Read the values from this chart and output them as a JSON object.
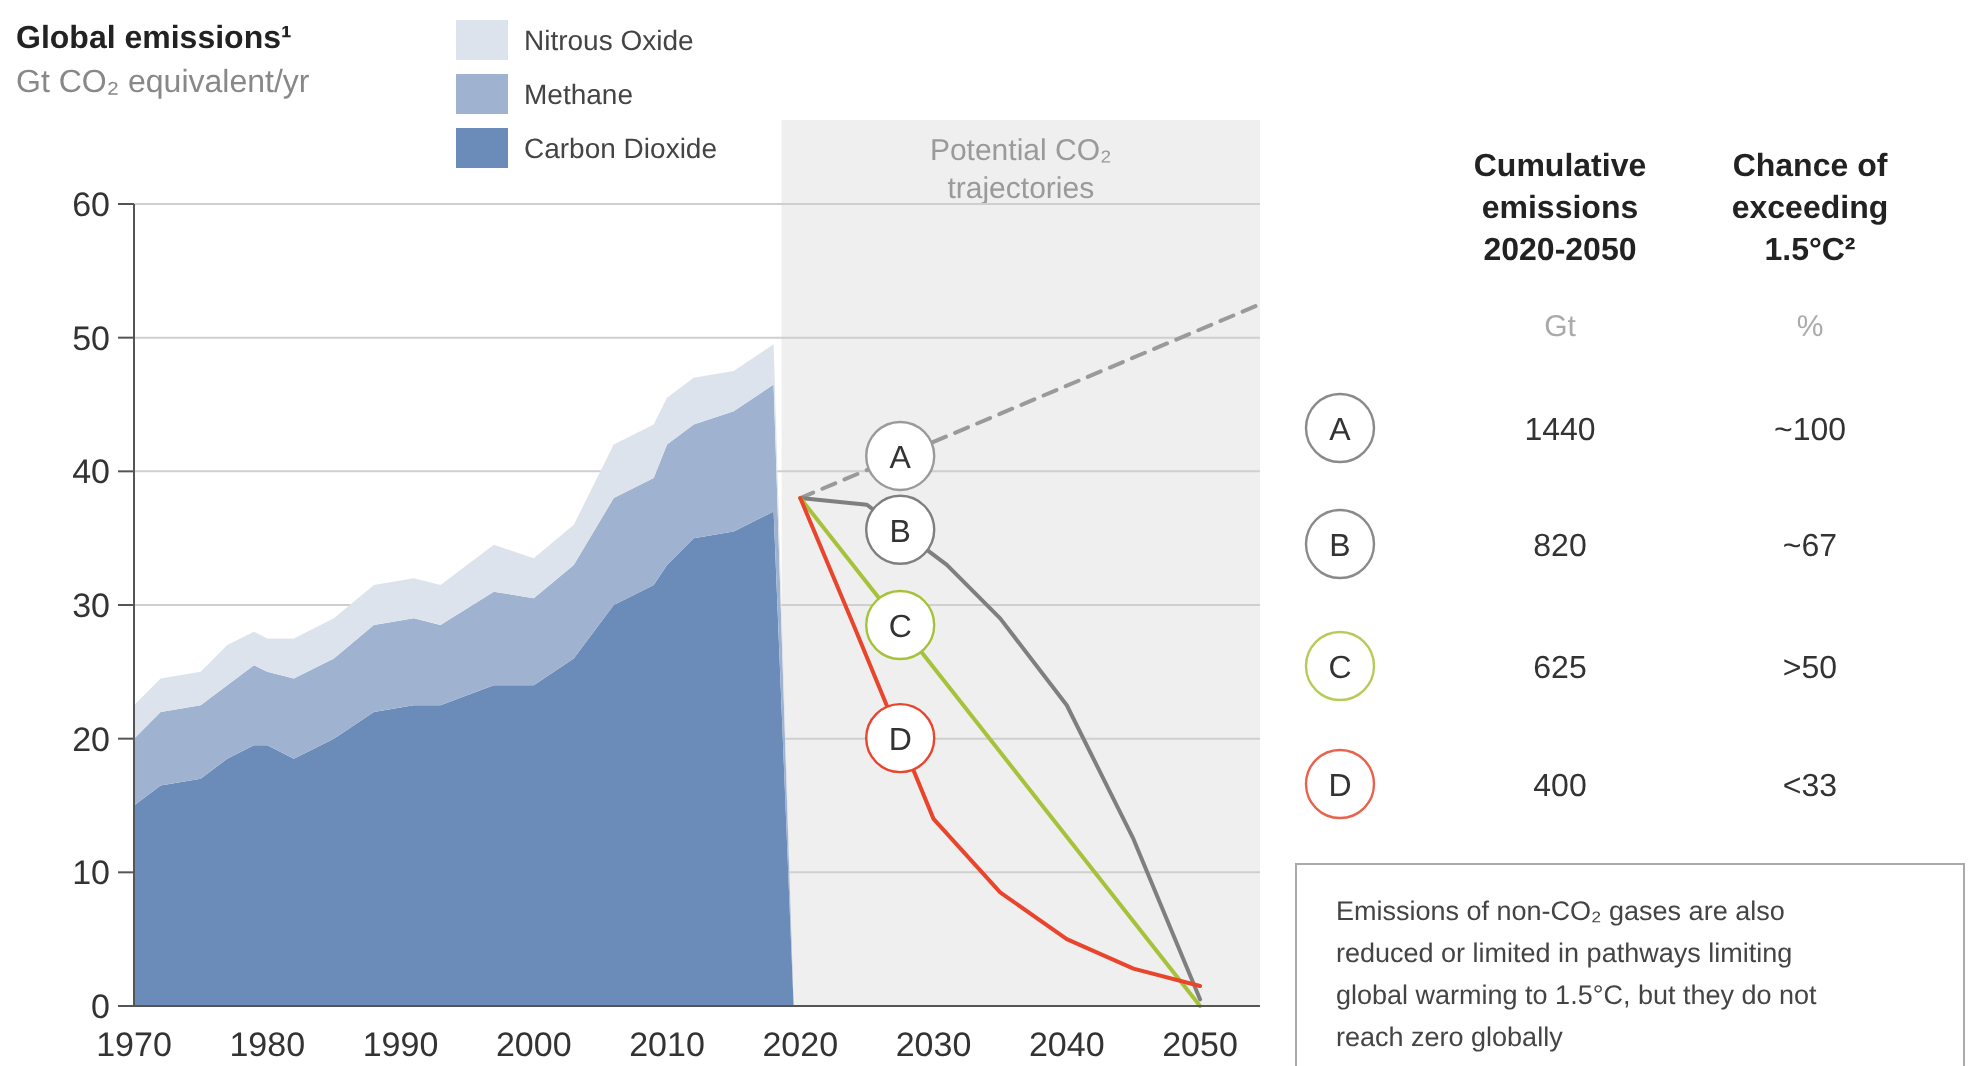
{
  "chart_data": [
    {
      "type": "area",
      "title": "Global emissions¹",
      "ylabel": "Gt CO₂ equivalent/yr",
      "stacked": true,
      "grid": "y",
      "legend": "top",
      "x": [
        1970,
        1972,
        1975,
        1977,
        1979,
        1980,
        1982,
        1985,
        1988,
        1991,
        1993,
        1997,
        2000,
        2003,
        2006,
        2009,
        2010,
        2012,
        2015,
        2018,
        2019.5
      ],
      "xlim": [
        1970,
        2054.5
      ],
      "ylim": [
        0,
        60
      ],
      "xticks": [
        1970,
        1980,
        1990,
        2000,
        2010,
        2020,
        2030,
        2040,
        2050
      ],
      "yticks": [
        0,
        10,
        20,
        30,
        40,
        50,
        60
      ],
      "series": [
        {
          "name": "Carbon Dioxide",
          "color": "#6b8cb8",
          "values": [
            15,
            16.5,
            17,
            18.5,
            19.5,
            19.5,
            18.5,
            20,
            22,
            22.5,
            22.5,
            24,
            24,
            26,
            30,
            31.5,
            33,
            35,
            35.5,
            37,
            0
          ]
        },
        {
          "name": "Methane",
          "color": "#9fb3d1",
          "values": [
            5,
            5.5,
            5.5,
            5.5,
            6,
            5.5,
            6,
            6,
            6.5,
            6.5,
            6,
            7,
            6.5,
            7,
            8,
            8,
            9,
            8.5,
            9,
            9.5,
            0
          ]
        },
        {
          "name": "Nitrous Oxide",
          "color": "#dde3ec",
          "values": [
            2.5,
            2.5,
            2.5,
            3,
            2.5,
            2.5,
            3,
            3,
            3,
            3,
            3,
            3.5,
            3,
            3,
            4,
            4,
            3.5,
            3.5,
            3,
            3,
            0
          ]
        },
        {
          "name": "A",
          "type": "line",
          "line_style": "dashed",
          "color": "#9a9a9a",
          "x": [
            2020,
            2054.5
          ],
          "values": [
            38,
            52.5
          ]
        },
        {
          "name": "B",
          "type": "line",
          "color": "#7f7f7f",
          "x": [
            2020,
            2025,
            2031,
            2035,
            2040,
            2045,
            2050
          ],
          "values": [
            38,
            37.5,
            33,
            29,
            22.5,
            12.5,
            0.5
          ]
        },
        {
          "name": "C",
          "type": "line",
          "color": "#a6c23a",
          "x": [
            2020,
            2050
          ],
          "values": [
            38,
            0
          ]
        },
        {
          "name": "D",
          "type": "line",
          "color": "#e8452c",
          "x": [
            2020,
            2024,
            2030,
            2035,
            2040,
            2045,
            2050
          ],
          "values": [
            38,
            28.5,
            14,
            8.5,
            5,
            2.8,
            1.5
          ]
        }
      ],
      "bands": [
        {
          "axis": "x",
          "from": 2018.6,
          "to": 2054.5,
          "label": "Potential CO₂ trajectories",
          "color": "#efefef"
        }
      ]
    },
    {
      "type": "other",
      "data_labels": true,
      "categories": [
        "A",
        "B",
        "C",
        "D"
      ],
      "colors": [
        "#8a8a8a",
        "#8a8a8a",
        "#b5cc5a",
        "#e8624c"
      ],
      "series": [
        {
          "name": "Cumulative emissions 2020-2050",
          "values": [
            1440,
            820,
            625,
            400
          ]
        }
      ],
      "annotations": [
        "Gt",
        "Chance of exceeding 1.5°C²",
        "%",
        "Emissions of non-CO₂ gases are also reduced or limited in pathways limiting global warming to 1.5°C, but they do not reach zero globally",
        {
          "text": "~100",
          "x": "A"
        },
        {
          "text": "~67",
          "x": "B"
        },
        {
          "text": ">50",
          "x": "C"
        },
        {
          "text": "<33",
          "x": "D"
        }
      ]
    }
  ]
}
